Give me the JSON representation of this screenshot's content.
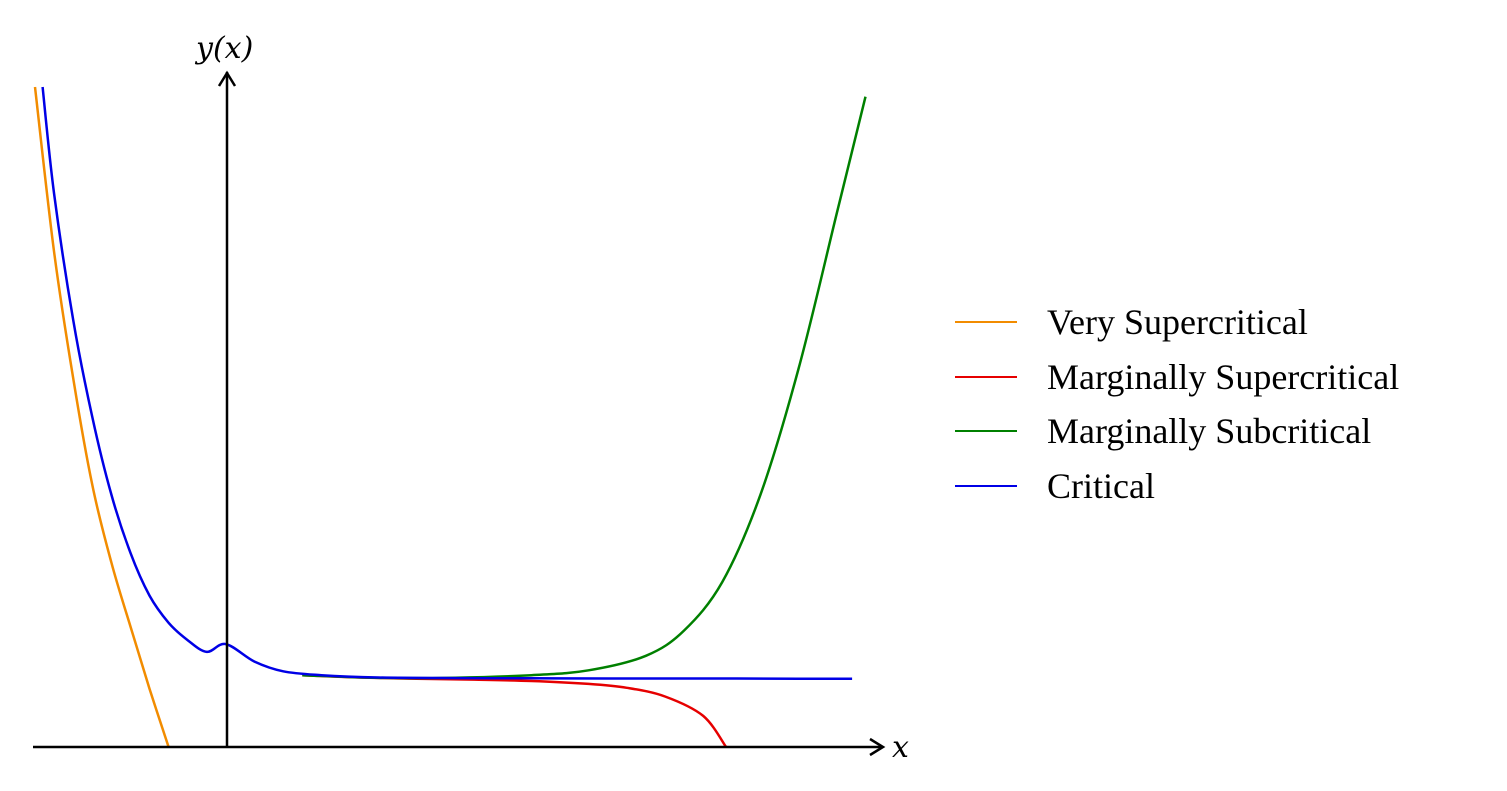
{
  "chart_data": {
    "type": "line",
    "title": "",
    "xlabel": "x",
    "ylabel": "y(x)",
    "grid": false,
    "legend_position": "right",
    "xlim": [
      -1.0,
      3.4
    ],
    "ylim": [
      0,
      3.4
    ],
    "series": [
      {
        "name": "Very Supercritical",
        "color": "#f28c00",
        "x": [
          -1.0,
          -0.9,
          -0.8,
          -0.7,
          -0.6,
          -0.5,
          -0.4,
          -0.3
        ],
        "y": [
          3.4,
          2.55,
          1.9,
          1.35,
          0.95,
          0.62,
          0.3,
          0.0
        ]
      },
      {
        "name": "Marginally Supercritical",
        "color": "#e60000",
        "x": [
          0.4,
          0.7,
          1.0,
          1.3,
          1.6,
          1.9,
          2.1,
          2.3,
          2.5,
          2.62
        ],
        "y": [
          0.37,
          0.358,
          0.352,
          0.347,
          0.34,
          0.325,
          0.305,
          0.26,
          0.16,
          0.0
        ]
      },
      {
        "name": "Marginally Subcritical",
        "color": "#008000",
        "x": [
          0.4,
          0.8,
          1.2,
          1.6,
          1.9,
          2.2,
          2.4,
          2.6,
          2.8,
          3.0,
          3.2,
          3.35
        ],
        "y": [
          0.37,
          0.356,
          0.357,
          0.37,
          0.395,
          0.47,
          0.6,
          0.85,
          1.3,
          1.95,
          2.75,
          3.35
        ]
      },
      {
        "name": "Critical",
        "color": "#0000e6",
        "x": [
          -0.96,
          -0.9,
          -0.8,
          -0.7,
          -0.6,
          -0.5,
          -0.4,
          -0.3,
          -0.2,
          -0.1,
          0.0,
          0.15,
          0.3,
          0.5,
          0.8,
          1.2,
          1.6,
          2.0,
          2.5,
          3.0,
          3.28
        ],
        "y": [
          3.4,
          2.85,
          2.2,
          1.7,
          1.3,
          1.0,
          0.78,
          0.64,
          0.55,
          0.49,
          0.53,
          0.44,
          0.39,
          0.37,
          0.358,
          0.355,
          0.354,
          0.353,
          0.353,
          0.352,
          0.352
        ]
      }
    ]
  }
}
